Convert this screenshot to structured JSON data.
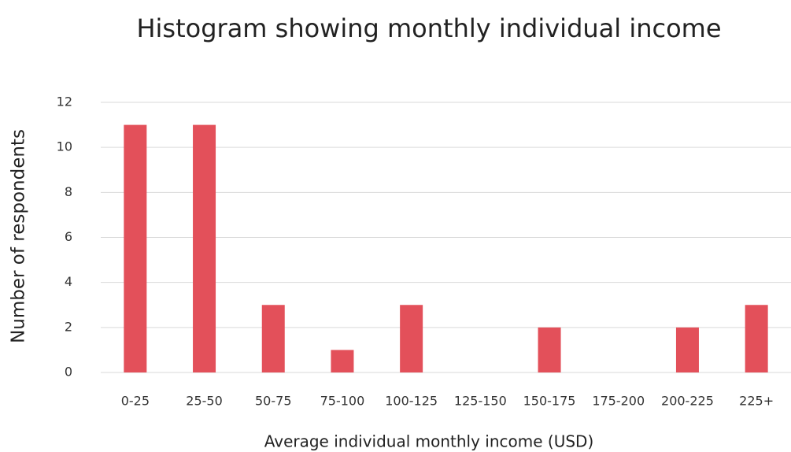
{
  "chart_data": {
    "type": "bar",
    "title": "Histogram showing monthly individual income",
    "x_label": "Average individual monthly income (USD)",
    "y_label": "Number of respondents",
    "categories": [
      "0-25",
      "25-50",
      "50-75",
      "75-100",
      "100-125",
      "125-150",
      "150-175",
      "175-200",
      "200-225",
      "225+"
    ],
    "values": [
      11,
      11,
      3,
      1,
      3,
      0,
      2,
      0,
      2,
      3
    ],
    "color": "#e3505a",
    "ylim": [
      0,
      12
    ],
    "yticks": [
      0,
      2,
      4,
      6,
      8,
      10,
      12
    ],
    "grid": true
  }
}
